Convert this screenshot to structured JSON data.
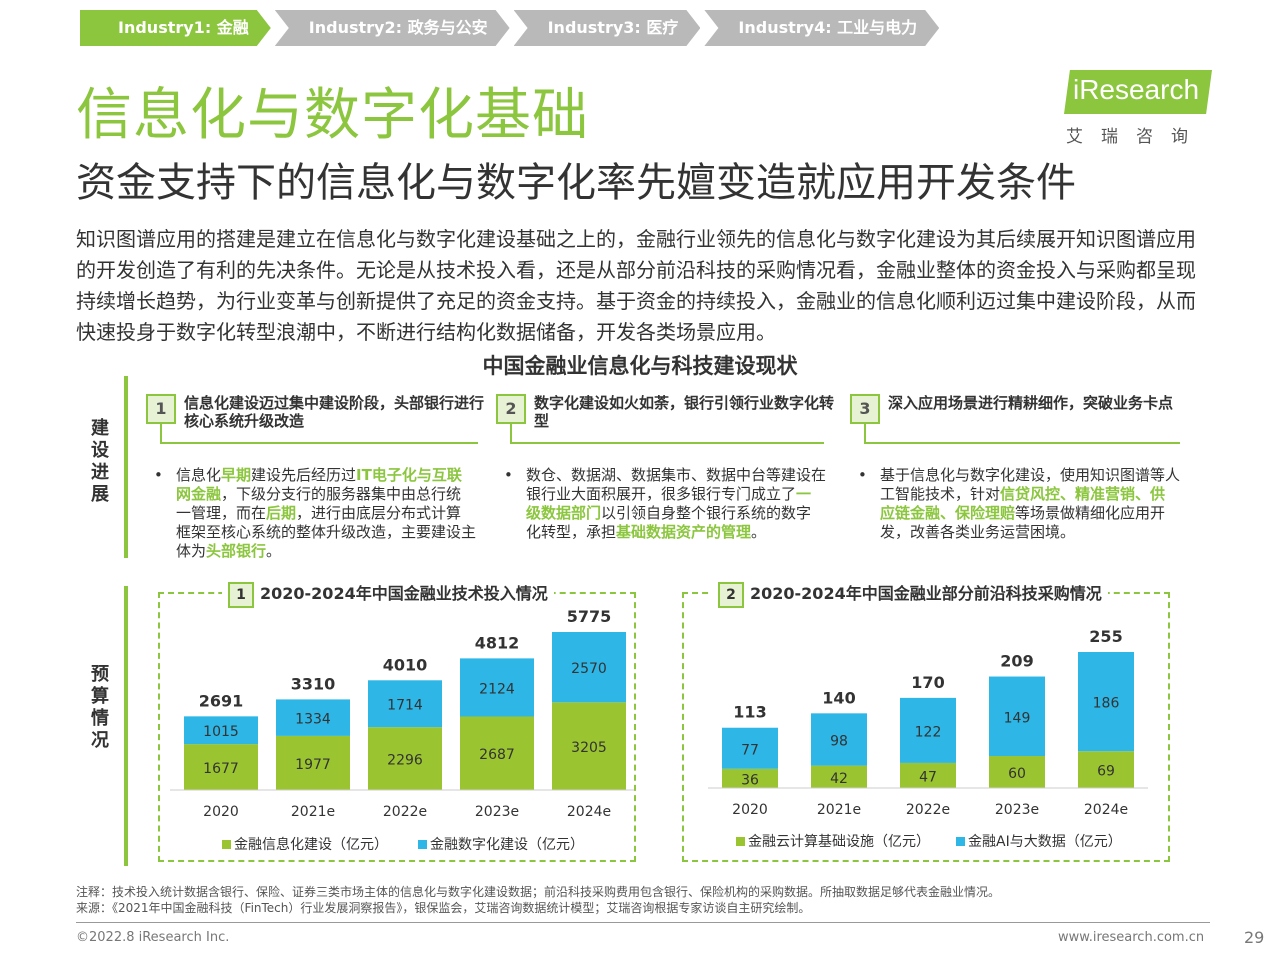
{
  "nav": [
    {
      "label": "Industry1: 金融"
    },
    {
      "label": "Industry2: 政务与公安"
    },
    {
      "label": "Industry3: 医疗"
    },
    {
      "label": "Industry4: 工业与电力"
    }
  ],
  "title": "信息化与数字化基础",
  "subtitle": "资金支持下的信息化与数字化率先嬗变造就应用开发条件",
  "logo": {
    "text": "iResearch",
    "cn": "艾瑞咨询"
  },
  "intro": "知识图谱应用的搭建是建立在信息化与数字化建设基础之上的，金融行业领先的信息化与数字化建设为其后续展开知识图谱应用的开发创造了有利的先决条件。无论是从技术投入看，还是从部分前沿科技的采购情况看，金融业整体的资金投入与采购都呈现持续增长趋势，为行业变革与创新提供了充足的资金支持。基于资金的持续投入，金融业的信息化顺利迈过集中建设阶段，从而快速投身于数字化转型浪潮中，不断进行结构化数据储备，开发各类场景应用。",
  "section_title": "中国金融业信息化与科技建设现状",
  "side_labels": {
    "build": "建设进展",
    "budget": "预算情况"
  },
  "columns": [
    {
      "num": "1",
      "head": "信息化建设迈过集中建设阶段，头部银行进行核心系统升级改造",
      "body": [
        {
          "t": "信息化",
          "h": false
        },
        {
          "t": "早期",
          "h": true
        },
        {
          "t": "建设先后经历过",
          "h": false
        },
        {
          "t": "IT电子化与互联网金融",
          "h": true
        },
        {
          "t": "，下级分支行的服务器集中由总行统一管理，而在",
          "h": false
        },
        {
          "t": "后期",
          "h": true
        },
        {
          "t": "，进行由底层分布式计算框架至核心系统的整体升级改造，主要建设主体为",
          "h": false
        },
        {
          "t": "头部银行",
          "h": true
        },
        {
          "t": "。",
          "h": false
        }
      ]
    },
    {
      "num": "2",
      "head": "数字化建设如火如荼，银行引领行业数字化转型",
      "body": [
        {
          "t": "数仓、数据湖、数据集市、数据中台等建设在银行业大面积展开，很多银行专门成立了",
          "h": false
        },
        {
          "t": "一级数据部门",
          "h": true
        },
        {
          "t": "以引领自身整个银行系统的数字化转型，承担",
          "h": false
        },
        {
          "t": "基础数据资产的管理",
          "h": true
        },
        {
          "t": "。",
          "h": false
        }
      ]
    },
    {
      "num": "3",
      "head": "深入应用场景进行精耕细作，突破业务卡点",
      "body": [
        {
          "t": "基于信息化与数字化建设，使用知识图谱等人工智能技术，针对",
          "h": false
        },
        {
          "t": "信贷风控、精准营销、供应链金融、保险理赔",
          "h": true
        },
        {
          "t": "等场景做精细化应用开发，改善各类业务运营困境。",
          "h": false
        }
      ]
    }
  ],
  "chart_data": [
    {
      "type": "bar",
      "number": "1",
      "title": "2020-2024年中国金融业技术投入情况",
      "categories": [
        "2020",
        "2021e",
        "2022e",
        "2023e",
        "2024e"
      ],
      "series": [
        {
          "name": "金融信息化建设（亿元）",
          "values": [
            1677,
            1977,
            2296,
            2687,
            3205
          ],
          "color": "#9bc530"
        },
        {
          "name": "金融数字化建设（亿元）",
          "values": [
            1015,
            1334,
            1714,
            2124,
            2570
          ],
          "color": "#2eb6e6"
        }
      ],
      "totals": [
        2691,
        3310,
        4010,
        4812,
        5775
      ],
      "stacked": true
    },
    {
      "type": "bar",
      "number": "2",
      "title": "2020-2024年中国金融业部分前沿科技采购情况",
      "categories": [
        "2020",
        "2021e",
        "2022e",
        "2023e",
        "2024e"
      ],
      "series": [
        {
          "name": "金融云计算基础设施（亿元）",
          "values": [
            36,
            42,
            47,
            60,
            69
          ],
          "color": "#9bc530"
        },
        {
          "name": "金融AI与大数据（亿元）",
          "values": [
            77,
            98,
            122,
            149,
            186
          ],
          "color": "#2eb6e6"
        }
      ],
      "totals": [
        113,
        140,
        170,
        209,
        255
      ],
      "stacked": true
    }
  ],
  "note": "注释：技术投入统计数据含银行、保险、证券三类市场主体的信息化与数字化建设数据；前沿科技采购费用包含银行、保险机构的采购数据。所抽取数据足够代表金融业情况。",
  "source": "来源：《2021年中国金融科技（FinTech）行业发展洞察报告》，银保监会，艾瑞咨询数据统计模型；艾瑞咨询根据专家访谈自主研究绘制。",
  "footer": {
    "copyright": "©2022.8 iResearch Inc.",
    "url": "www.iresearch.com.cn",
    "page": "29"
  }
}
